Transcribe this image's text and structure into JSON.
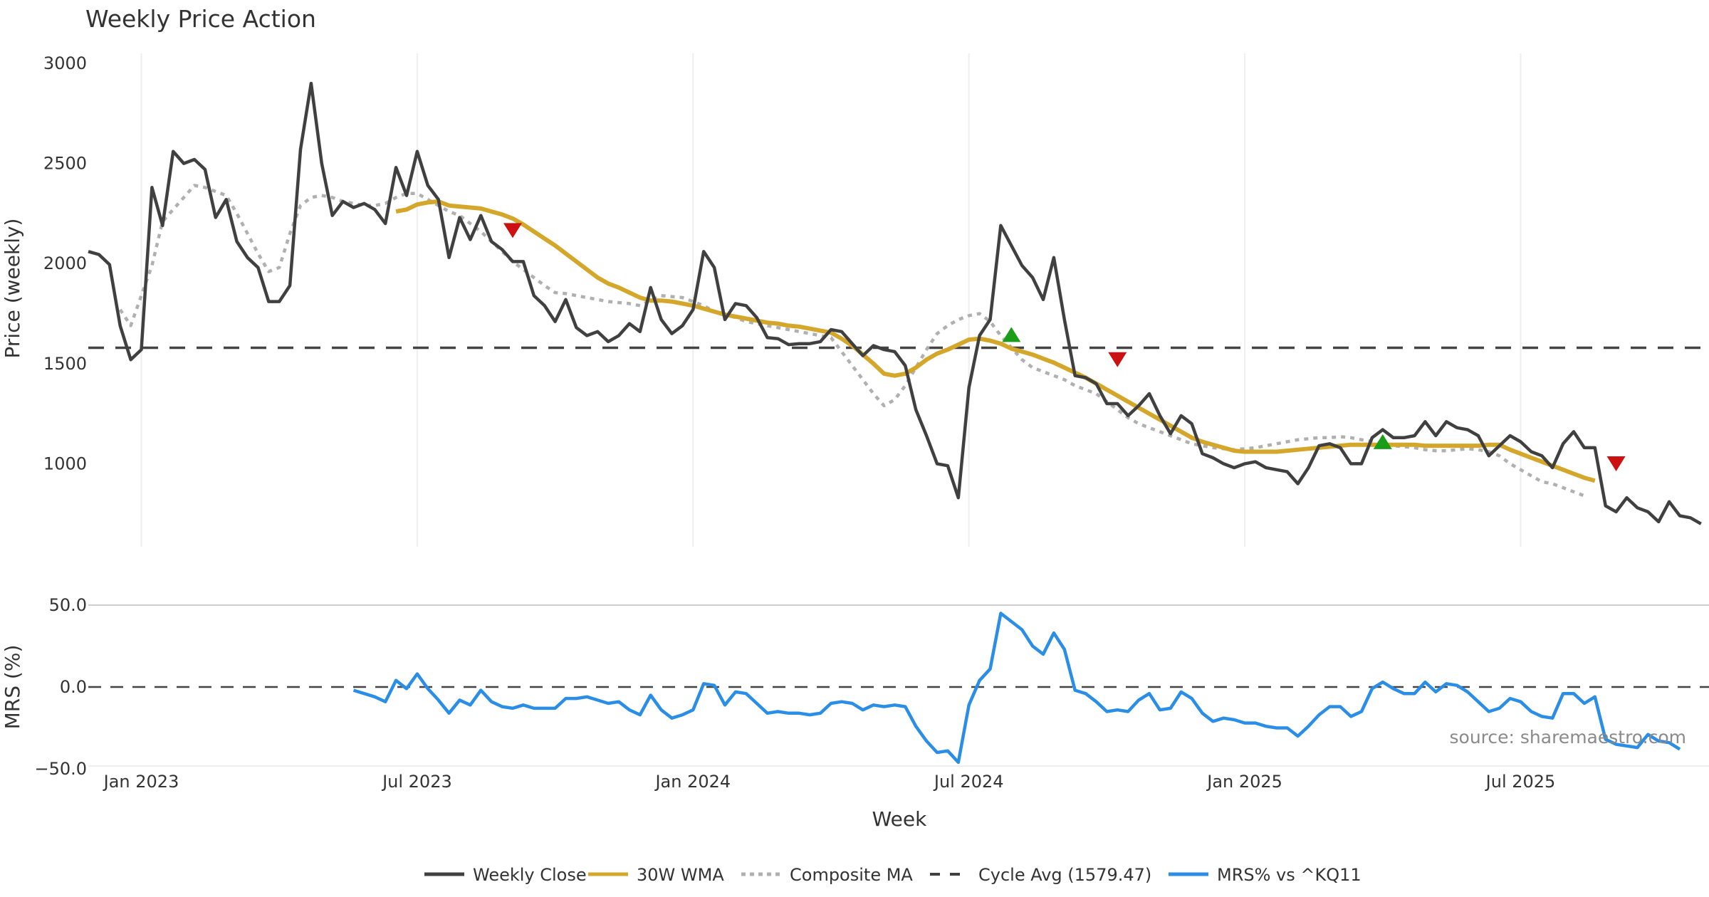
{
  "chart_data": {
    "type": "line",
    "title": "Weekly Price Action",
    "xlabel": "Week",
    "x_tick_labels": [
      "Jan 2023",
      "Jul 2023",
      "Jan 2024",
      "Jul 2024",
      "Jan 2025",
      "Jul 2025"
    ],
    "x_tick_week_index": [
      5,
      31,
      57,
      83,
      109,
      135
    ],
    "price_panel": {
      "ylabel": "Price (weekly)",
      "ylim": [
        600,
        3000
      ],
      "yticks": [
        1000,
        1500,
        2000,
        2500,
        3000
      ],
      "ytick_labels": [
        "1000",
        "1500",
        "2000",
        "2500",
        "3000"
      ],
      "grid": "vertical",
      "cycle_avg": 1579.47,
      "series": [
        {
          "name": "Weekly Close",
          "color": "#404040",
          "style": "solid",
          "start_week": 0,
          "values": [
            2060,
            2045,
            1995,
            1690,
            1520,
            1570,
            2380,
            2190,
            2560,
            2500,
            2520,
            2470,
            2230,
            2320,
            2110,
            2030,
            1980,
            1810,
            1810,
            1890,
            2570,
            2900,
            2500,
            2240,
            2310,
            2280,
            2300,
            2270,
            2200,
            2480,
            2340,
            2560,
            2390,
            2320,
            2030,
            2230,
            2120,
            2240,
            2110,
            2070,
            2010,
            2010,
            1840,
            1790,
            1710,
            1820,
            1680,
            1640,
            1660,
            1610,
            1640,
            1700,
            1660,
            1880,
            1720,
            1650,
            1690,
            1770,
            2060,
            1980,
            1720,
            1800,
            1790,
            1730,
            1630,
            1625,
            1595,
            1600,
            1600,
            1610,
            1670,
            1660,
            1600,
            1540,
            1590,
            1570,
            1560,
            1490,
            1270,
            1140,
            1000,
            990,
            830,
            1380,
            1640,
            1720,
            2190,
            2090,
            1990,
            1930,
            1820,
            2030,
            1720,
            1440,
            1430,
            1400,
            1300,
            1300,
            1240,
            1290,
            1350,
            1240,
            1150,
            1240,
            1200,
            1050,
            1030,
            1000,
            980,
            1000,
            1010,
            980,
            970,
            960,
            900,
            980,
            1090,
            1100,
            1080,
            1000,
            1000,
            1130,
            1170,
            1130,
            1130,
            1140,
            1210,
            1140,
            1210,
            1180,
            1170,
            1140,
            1040,
            1090,
            1140,
            1110,
            1060,
            1040,
            980,
            1100,
            1160,
            1080,
            1080,
            790,
            760,
            830,
            780,
            760,
            710,
            810,
            740,
            730,
            700
          ]
        },
        {
          "name": "30W WMA",
          "color": "#d4a62a",
          "style": "solid",
          "start_week": 29,
          "values": [
            2260,
            2270,
            2295,
            2305,
            2310,
            2290,
            2285,
            2280,
            2275,
            2260,
            2245,
            2225,
            2195,
            2160,
            2125,
            2090,
            2050,
            2010,
            1970,
            1930,
            1900,
            1880,
            1855,
            1830,
            1815,
            1815,
            1810,
            1800,
            1790,
            1775,
            1760,
            1745,
            1735,
            1725,
            1715,
            1705,
            1700,
            1690,
            1685,
            1675,
            1665,
            1655,
            1625,
            1590,
            1545,
            1500,
            1450,
            1440,
            1450,
            1480,
            1520,
            1550,
            1570,
            1595,
            1620,
            1625,
            1615,
            1600,
            1575,
            1560,
            1545,
            1525,
            1505,
            1480,
            1455,
            1430,
            1400,
            1370,
            1340,
            1310,
            1280,
            1250,
            1220,
            1190,
            1160,
            1130,
            1110,
            1095,
            1080,
            1065,
            1060,
            1060,
            1060,
            1060,
            1065,
            1070,
            1075,
            1080,
            1085,
            1090,
            1095,
            1095,
            1095,
            1095,
            1095,
            1095,
            1095,
            1090,
            1090,
            1090,
            1090,
            1090,
            1090,
            1095,
            1095,
            1070,
            1050,
            1030,
            1010,
            990,
            970,
            950,
            930,
            915
          ]
        },
        {
          "name": "Composite MA",
          "color": "#b0b0b0",
          "style": "dotted",
          "start_week": 3,
          "values": [
            1770,
            1690,
            1840,
            1990,
            2210,
            2270,
            2330,
            2390,
            2380,
            2360,
            2340,
            2250,
            2150,
            2050,
            1960,
            1980,
            2150,
            2290,
            2330,
            2340,
            2330,
            2310,
            2300,
            2290,
            2290,
            2300,
            2330,
            2350,
            2350,
            2320,
            2290,
            2260,
            2240,
            2200,
            2160,
            2110,
            2060,
            2010,
            1970,
            1930,
            1890,
            1855,
            1850,
            1840,
            1830,
            1820,
            1810,
            1805,
            1800,
            1790,
            1815,
            1840,
            1835,
            1830,
            1810,
            1790,
            1760,
            1745,
            1730,
            1710,
            1700,
            1690,
            1680,
            1670,
            1660,
            1650,
            1640,
            1630,
            1560,
            1490,
            1420,
            1350,
            1290,
            1320,
            1390,
            1480,
            1570,
            1650,
            1690,
            1720,
            1740,
            1750,
            1710,
            1640,
            1580,
            1520,
            1480,
            1460,
            1440,
            1420,
            1390,
            1370,
            1350,
            1310,
            1270,
            1230,
            1200,
            1180,
            1160,
            1140,
            1120,
            1100,
            1090,
            1080,
            1075,
            1070,
            1075,
            1080,
            1090,
            1100,
            1110,
            1120,
            1125,
            1130,
            1130,
            1135,
            1130,
            1120,
            1110,
            1100,
            1090,
            1085,
            1080,
            1070,
            1065,
            1065,
            1070,
            1075,
            1070,
            1060,
            1040,
            1000,
            970,
            940,
            910,
            900,
            880,
            860,
            840
          ]
        }
      ],
      "signals": [
        {
          "type": "sell",
          "week": 40,
          "value": 2170,
          "color": "#cc1111"
        },
        {
          "type": "buy",
          "week": 87,
          "value": 1640,
          "color": "#1a9e1a"
        },
        {
          "type": "sell",
          "week": 97,
          "value": 1525,
          "color": "#cc1111"
        },
        {
          "type": "buy",
          "week": 122,
          "value": 1105,
          "color": "#1a9e1a"
        },
        {
          "type": "sell",
          "week": 144,
          "value": 1005,
          "color": "#cc1111"
        }
      ]
    },
    "mrs_panel": {
      "ylabel": "MRS (%)",
      "ylim": [
        -50,
        50
      ],
      "yticks": [
        -50,
        0,
        50
      ],
      "ytick_labels": [
        "−50.0",
        "0.0",
        "50.0"
      ],
      "zero_line": 0,
      "series": [
        {
          "name": "MRS% vs ^KQ11",
          "color": "#2a8de6",
          "style": "solid",
          "start_week": 25,
          "values": [
            -2,
            -4,
            -6,
            -9,
            4,
            -1,
            8,
            -1,
            -8,
            -16,
            -8,
            -11,
            -2,
            -9,
            -12,
            -13,
            -11,
            -13,
            -13,
            -13,
            -7,
            -7,
            -6,
            -8,
            -10,
            -9,
            -14,
            -17,
            -5,
            -14,
            -19,
            -17,
            -14,
            2,
            1,
            -11,
            -3,
            -4,
            -10,
            -16,
            -15,
            -16,
            -16,
            -17,
            -16,
            -10,
            -9,
            -10,
            -14,
            -11,
            -12,
            -11,
            -12,
            -24,
            -33,
            -40,
            -39,
            -46,
            -11,
            4,
            11,
            45,
            40,
            35,
            25,
            20,
            33,
            23,
            -2,
            -4,
            -9,
            -15,
            -14,
            -15,
            -8,
            -4,
            -14,
            -13,
            -3,
            -7,
            -16,
            -21,
            -19,
            -20,
            -22,
            -22,
            -24,
            -25,
            -25,
            -30,
            -24,
            -17,
            -12,
            -12,
            -18,
            -15,
            -1,
            3,
            -1,
            -4,
            -4,
            3,
            -3,
            2,
            1,
            -3,
            -9,
            -15,
            -13,
            -7,
            -9,
            -15,
            -18,
            -19,
            -4,
            -4,
            -10,
            -6,
            -32,
            -35,
            -36,
            -37,
            -29,
            -33,
            -34,
            -38
          ]
        }
      ]
    },
    "legend": {
      "placement": "bottom-center",
      "entries": [
        {
          "label": "Weekly Close",
          "color": "#404040",
          "style": "solid"
        },
        {
          "label": "30W WMA",
          "color": "#d4a62a",
          "style": "solid"
        },
        {
          "label": "Composite MA",
          "color": "#b0b0b0",
          "style": "dotted"
        },
        {
          "label": "Cycle Avg (1579.47)",
          "color": "#404040",
          "style": "dashed"
        },
        {
          "label": "MRS% vs ^KQ11",
          "color": "#2a8de6",
          "style": "solid"
        }
      ]
    },
    "annotation": "source: sharemaestro.com"
  }
}
